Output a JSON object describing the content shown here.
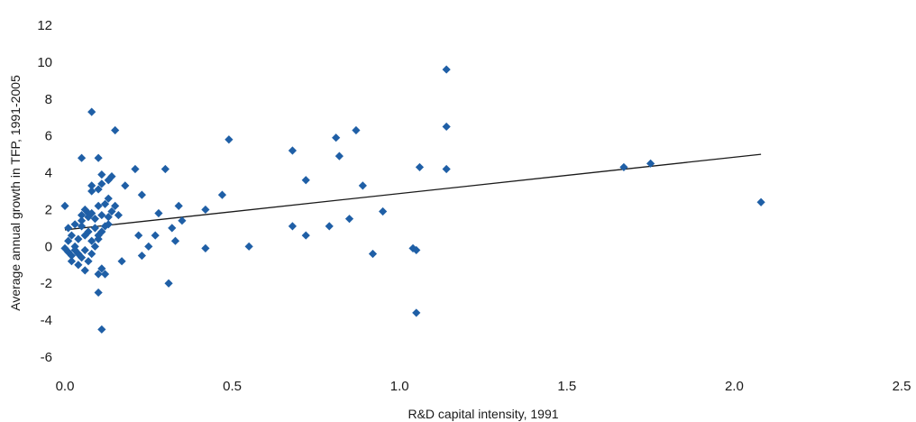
{
  "chart_data": {
    "type": "scatter",
    "title": "",
    "xlabel": "R&D capital intensity, 1991",
    "ylabel": "Average annual growth in TFP, 1991-2005",
    "xlim": [
      0,
      2.5
    ],
    "ylim": [
      -6,
      12
    ],
    "xticks": [
      "0.0",
      "0.5",
      "1.0",
      "1.5",
      "2.0",
      "2.5"
    ],
    "yticks": [
      "-6",
      "-4",
      "-2",
      "0",
      "2",
      "4",
      "6",
      "8",
      "10",
      "12"
    ],
    "grid": false,
    "legend": "none",
    "marker_color": "#1f5fa6",
    "trendline_color": "#1a1a1a",
    "trendline": {
      "x": [
        0.0,
        2.08
      ],
      "y": [
        0.9,
        5.0
      ]
    },
    "points": [
      [
        0.0,
        2.2
      ],
      [
        0.0,
        -0.1
      ],
      [
        0.01,
        1.0
      ],
      [
        0.01,
        0.3
      ],
      [
        0.01,
        -0.3
      ],
      [
        0.02,
        0.6
      ],
      [
        0.02,
        -0.5
      ],
      [
        0.02,
        -0.8
      ],
      [
        0.03,
        1.2
      ],
      [
        0.03,
        0.0
      ],
      [
        0.03,
        -0.2
      ],
      [
        0.04,
        0.4
      ],
      [
        0.04,
        -0.4
      ],
      [
        0.04,
        -1.0
      ],
      [
        0.05,
        4.8
      ],
      [
        0.05,
        1.7
      ],
      [
        0.05,
        1.4
      ],
      [
        0.05,
        1.1
      ],
      [
        0.05,
        -0.6
      ],
      [
        0.06,
        2.0
      ],
      [
        0.06,
        0.6
      ],
      [
        0.06,
        -0.2
      ],
      [
        0.06,
        -1.3
      ],
      [
        0.07,
        1.8
      ],
      [
        0.07,
        1.6
      ],
      [
        0.07,
        0.8
      ],
      [
        0.07,
        -0.8
      ],
      [
        0.08,
        7.3
      ],
      [
        0.08,
        3.3
      ],
      [
        0.08,
        3.0
      ],
      [
        0.08,
        1.8
      ],
      [
        0.08,
        0.3
      ],
      [
        0.08,
        -0.4
      ],
      [
        0.09,
        1.5
      ],
      [
        0.09,
        1.0
      ],
      [
        0.09,
        0.0
      ],
      [
        0.1,
        4.8
      ],
      [
        0.1,
        3.1
      ],
      [
        0.1,
        2.2
      ],
      [
        0.1,
        0.6
      ],
      [
        0.1,
        0.4
      ],
      [
        0.1,
        -1.5
      ],
      [
        0.1,
        -2.5
      ],
      [
        0.11,
        3.9
      ],
      [
        0.11,
        3.4
      ],
      [
        0.11,
        1.7
      ],
      [
        0.11,
        0.8
      ],
      [
        0.11,
        -1.2
      ],
      [
        0.11,
        -4.5
      ],
      [
        0.12,
        2.3
      ],
      [
        0.12,
        1.1
      ],
      [
        0.12,
        -1.5
      ],
      [
        0.13,
        3.6
      ],
      [
        0.13,
        2.6
      ],
      [
        0.13,
        1.6
      ],
      [
        0.13,
        1.2
      ],
      [
        0.14,
        3.8
      ],
      [
        0.14,
        1.9
      ],
      [
        0.15,
        2.2
      ],
      [
        0.15,
        6.3
      ],
      [
        0.16,
        1.7
      ],
      [
        0.17,
        -0.8
      ],
      [
        0.18,
        3.3
      ],
      [
        0.21,
        4.2
      ],
      [
        0.22,
        0.6
      ],
      [
        0.23,
        2.8
      ],
      [
        0.23,
        -0.5
      ],
      [
        0.25,
        0.0
      ],
      [
        0.27,
        0.6
      ],
      [
        0.28,
        1.8
      ],
      [
        0.3,
        4.2
      ],
      [
        0.31,
        -2.0
      ],
      [
        0.32,
        1.0
      ],
      [
        0.33,
        0.3
      ],
      [
        0.34,
        2.2
      ],
      [
        0.35,
        1.4
      ],
      [
        0.42,
        2.0
      ],
      [
        0.42,
        -0.1
      ],
      [
        0.47,
        2.8
      ],
      [
        0.49,
        5.8
      ],
      [
        0.55,
        0.0
      ],
      [
        0.68,
        5.2
      ],
      [
        0.68,
        1.1
      ],
      [
        0.72,
        3.6
      ],
      [
        0.72,
        0.6
      ],
      [
        0.79,
        1.1
      ],
      [
        0.81,
        5.9
      ],
      [
        0.82,
        4.9
      ],
      [
        0.85,
        1.5
      ],
      [
        0.87,
        6.3
      ],
      [
        0.89,
        3.3
      ],
      [
        0.92,
        -0.4
      ],
      [
        0.95,
        1.9
      ],
      [
        1.04,
        -0.1
      ],
      [
        1.05,
        -0.2
      ],
      [
        1.05,
        -3.6
      ],
      [
        1.06,
        4.3
      ],
      [
        1.14,
        9.6
      ],
      [
        1.14,
        6.5
      ],
      [
        1.14,
        4.2
      ],
      [
        1.67,
        4.3
      ],
      [
        1.75,
        4.5
      ],
      [
        2.08,
        2.4
      ]
    ]
  }
}
